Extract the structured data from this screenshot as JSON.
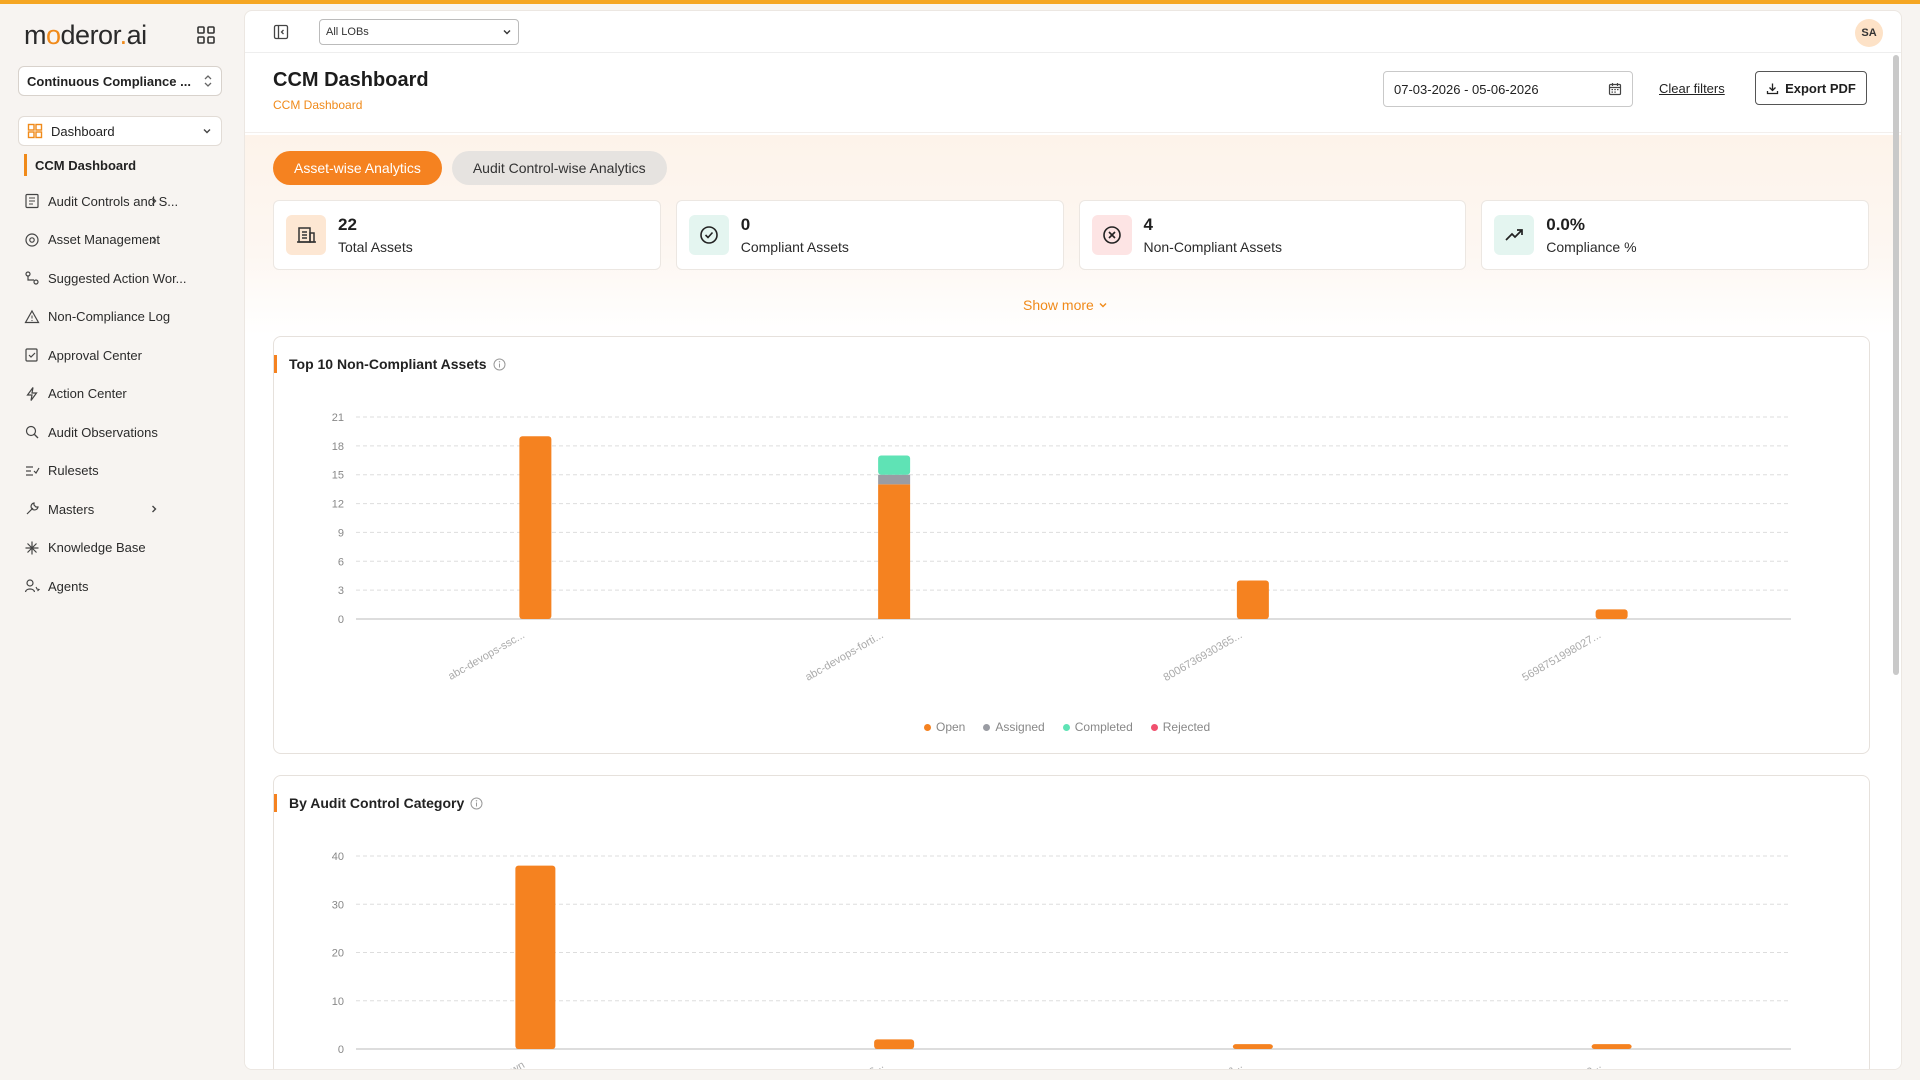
{
  "brand": {
    "logo_text_a": "m",
    "logo_text_b": "deror",
    "logo_text_c": "ai",
    "logo_o": "o",
    "logo_dot": "."
  },
  "sidebar": {
    "product": "Continuous Compliance ...",
    "dashboard_label": "Dashboard",
    "active_sub": "CCM Dashboard",
    "items": [
      {
        "label": "Audit Controls and S...",
        "icon": "list-icon",
        "chevron": true
      },
      {
        "label": "Asset Management",
        "icon": "asset-icon",
        "chevron": true
      },
      {
        "label": "Suggested Action Wor...",
        "icon": "workflow-icon",
        "chevron": false
      },
      {
        "label": "Non-Compliance Log",
        "icon": "warning-icon",
        "chevron": false
      },
      {
        "label": "Approval Center",
        "icon": "approval-icon",
        "chevron": false
      },
      {
        "label": "Action Center",
        "icon": "bolt-icon",
        "chevron": false
      },
      {
        "label": "Audit Observations",
        "icon": "search-doc-icon",
        "chevron": false
      },
      {
        "label": "Rulesets",
        "icon": "rules-icon",
        "chevron": false
      },
      {
        "label": "Masters",
        "icon": "tools-icon",
        "chevron": true
      },
      {
        "label": "Knowledge Base",
        "icon": "sparkle-icon",
        "chevron": false
      },
      {
        "label": "Agents",
        "icon": "agent-icon",
        "chevron": false
      }
    ]
  },
  "topbar": {
    "lob": "All LOBs",
    "avatar": "SA"
  },
  "header": {
    "title": "CCM Dashboard",
    "breadcrumb": "CCM Dashboard",
    "date_range": "07-03-2026 - 05-06-2026",
    "clear_filters": "Clear filters",
    "export": "Export PDF"
  },
  "tabs": {
    "active": "Asset-wise Analytics",
    "inactive": "Audit Control-wise Analytics"
  },
  "cards": [
    {
      "value": "22",
      "label": "Total Assets",
      "icon": "building-icon",
      "color": "#fde7d3"
    },
    {
      "value": "0",
      "label": "Compliant Assets",
      "icon": "check-circle-icon",
      "color": "#e4f5f0"
    },
    {
      "value": "4",
      "label": "Non-Compliant Assets",
      "icon": "x-circle-icon",
      "color": "#fde4e4"
    },
    {
      "value": "0.0%",
      "label": "Compliance %",
      "icon": "trend-up-icon",
      "color": "#e4f5f0"
    }
  ],
  "show_more": "Show more",
  "panels": {
    "top10_title": "Top 10 Non-Compliant Assets",
    "category_title": "By Audit Control Category"
  },
  "legend": [
    "Open",
    "Assigned",
    "Completed",
    "Rejected"
  ],
  "colors": {
    "open": "#f58220",
    "assigned": "#9a9ca3",
    "completed": "#5fe3b5",
    "rejected": "#f0506e",
    "accent": "#f58220"
  },
  "chart_data": [
    {
      "type": "bar",
      "title": "Top 10 Non-Compliant Assets",
      "stacked": true,
      "categories": [
        "abc-devops-ssc...",
        "abc-devops-forti...",
        "8006736930365...",
        "5698751998027..."
      ],
      "series": [
        {
          "name": "Open",
          "values": [
            19,
            14,
            4,
            1
          ]
        },
        {
          "name": "Assigned",
          "values": [
            0,
            1,
            0,
            0
          ]
        },
        {
          "name": "Completed",
          "values": [
            0,
            2,
            0,
            0
          ]
        },
        {
          "name": "Rejected",
          "values": [
            0,
            0,
            0,
            0
          ]
        }
      ],
      "yticks": [
        0,
        3,
        6,
        9,
        12,
        15,
        18,
        21
      ],
      "ylim": [
        0,
        21
      ],
      "legend": "bottom"
    },
    {
      "type": "bar",
      "title": "By Audit Control Category",
      "categories": [
        "Unknown",
        "... Access...",
        "...anagem...",
        "...g Reco..."
      ],
      "values": [
        38,
        2,
        1,
        1
      ],
      "yticks": [
        0,
        10,
        20,
        30,
        40
      ],
      "ylim": [
        0,
        40
      ]
    }
  ]
}
